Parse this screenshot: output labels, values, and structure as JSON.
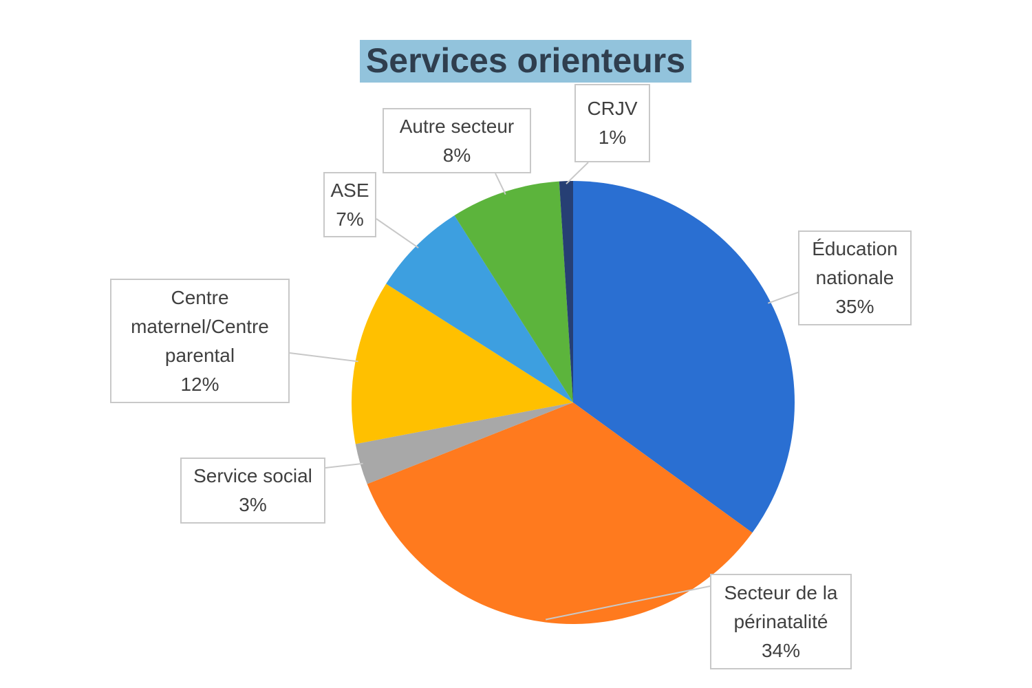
{
  "chart_data": {
    "type": "pie",
    "title": "Services orienteurs",
    "categories": [
      "Éducation nationale",
      "Secteur de la périnatalité",
      "Service social",
      "Centre maternel/Centre parental",
      "ASE",
      "Autre secteur",
      "CRJV"
    ],
    "values": [
      35,
      34,
      3,
      12,
      7,
      8,
      1
    ],
    "value_labels": [
      "35%",
      "34%",
      "3%",
      "12%",
      "7%",
      "8%",
      "1%"
    ],
    "colors": [
      "#2a6fd2",
      "#ff7a1e",
      "#a8a8a8",
      "#ffc000",
      "#3d9fe0",
      "#5cb43c",
      "#263f74"
    ]
  }
}
